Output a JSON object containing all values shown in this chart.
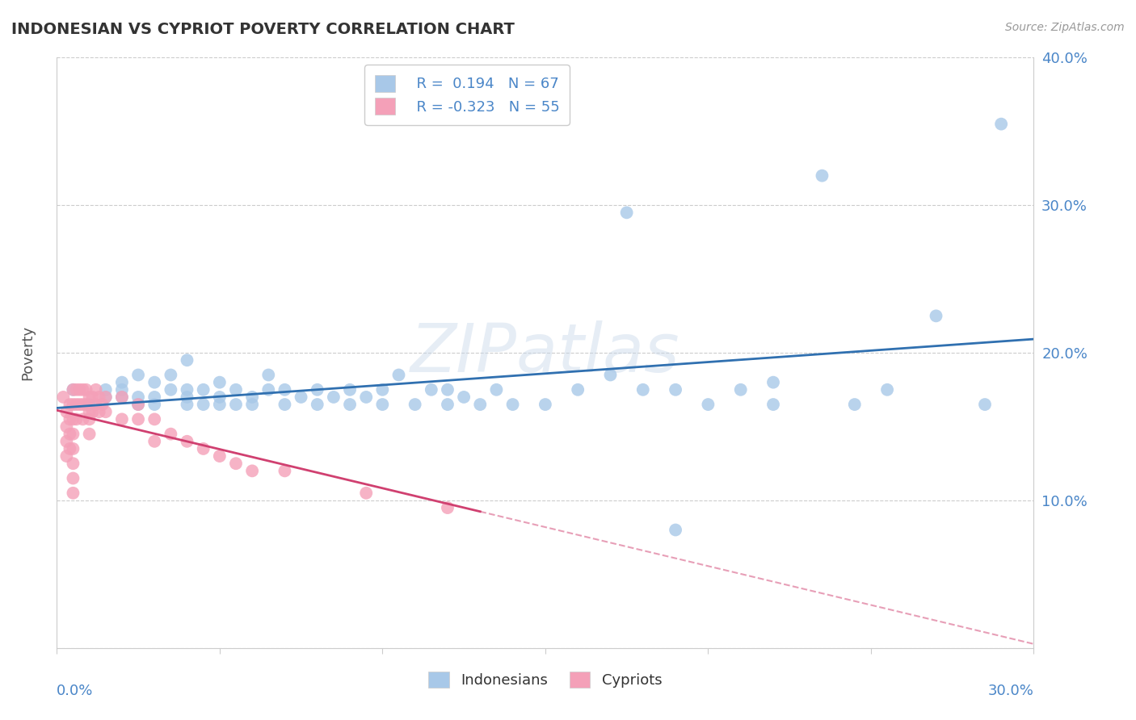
{
  "title": "INDONESIAN VS CYPRIOT POVERTY CORRELATION CHART",
  "source": "Source: ZipAtlas.com",
  "ylabel": "Poverty",
  "xlim": [
    0,
    0.3
  ],
  "ylim": [
    0,
    0.4
  ],
  "yticks": [
    0.0,
    0.1,
    0.2,
    0.3,
    0.4
  ],
  "ytick_labels": [
    "",
    "10.0%",
    "20.0%",
    "30.0%",
    "40.0%"
  ],
  "xticks": [
    0.0,
    0.05,
    0.1,
    0.15,
    0.2,
    0.25,
    0.3
  ],
  "blue_color": "#a8c8e8",
  "pink_color": "#f4a0b8",
  "blue_line_color": "#3070b0",
  "pink_line_color": "#d04070",
  "indonesian_x": [
    0.005,
    0.01,
    0.015,
    0.015,
    0.02,
    0.02,
    0.02,
    0.025,
    0.025,
    0.025,
    0.03,
    0.03,
    0.03,
    0.035,
    0.035,
    0.04,
    0.04,
    0.04,
    0.04,
    0.045,
    0.045,
    0.05,
    0.05,
    0.05,
    0.055,
    0.055,
    0.06,
    0.06,
    0.065,
    0.065,
    0.07,
    0.07,
    0.075,
    0.08,
    0.08,
    0.085,
    0.09,
    0.09,
    0.095,
    0.1,
    0.1,
    0.105,
    0.11,
    0.115,
    0.12,
    0.12,
    0.125,
    0.13,
    0.135,
    0.14,
    0.15,
    0.16,
    0.17,
    0.18,
    0.19,
    0.2,
    0.21,
    0.22,
    0.235,
    0.245,
    0.255,
    0.27,
    0.285,
    0.19,
    0.175,
    0.22,
    0.29
  ],
  "indonesian_y": [
    0.175,
    0.165,
    0.17,
    0.175,
    0.17,
    0.175,
    0.18,
    0.165,
    0.17,
    0.185,
    0.165,
    0.17,
    0.18,
    0.175,
    0.185,
    0.165,
    0.17,
    0.175,
    0.195,
    0.165,
    0.175,
    0.165,
    0.17,
    0.18,
    0.165,
    0.175,
    0.165,
    0.17,
    0.175,
    0.185,
    0.165,
    0.175,
    0.17,
    0.165,
    0.175,
    0.17,
    0.165,
    0.175,
    0.17,
    0.165,
    0.175,
    0.185,
    0.165,
    0.175,
    0.165,
    0.175,
    0.17,
    0.165,
    0.175,
    0.165,
    0.165,
    0.175,
    0.185,
    0.175,
    0.175,
    0.165,
    0.175,
    0.165,
    0.32,
    0.165,
    0.175,
    0.225,
    0.165,
    0.08,
    0.295,
    0.18,
    0.355
  ],
  "cypriot_x": [
    0.002,
    0.003,
    0.003,
    0.003,
    0.003,
    0.004,
    0.004,
    0.004,
    0.004,
    0.005,
    0.005,
    0.005,
    0.005,
    0.005,
    0.005,
    0.005,
    0.005,
    0.006,
    0.006,
    0.006,
    0.007,
    0.007,
    0.008,
    0.008,
    0.008,
    0.009,
    0.009,
    0.01,
    0.01,
    0.01,
    0.01,
    0.011,
    0.011,
    0.012,
    0.012,
    0.013,
    0.013,
    0.014,
    0.015,
    0.015,
    0.02,
    0.02,
    0.025,
    0.025,
    0.03,
    0.03,
    0.035,
    0.04,
    0.045,
    0.05,
    0.055,
    0.06,
    0.07,
    0.095,
    0.12
  ],
  "cypriot_y": [
    0.17,
    0.16,
    0.15,
    0.14,
    0.13,
    0.165,
    0.155,
    0.145,
    0.135,
    0.175,
    0.165,
    0.155,
    0.145,
    0.135,
    0.125,
    0.115,
    0.105,
    0.175,
    0.165,
    0.155,
    0.175,
    0.165,
    0.175,
    0.165,
    0.155,
    0.175,
    0.165,
    0.17,
    0.16,
    0.155,
    0.145,
    0.17,
    0.16,
    0.175,
    0.165,
    0.17,
    0.16,
    0.165,
    0.17,
    0.16,
    0.17,
    0.155,
    0.165,
    0.155,
    0.155,
    0.14,
    0.145,
    0.14,
    0.135,
    0.13,
    0.125,
    0.12,
    0.12,
    0.105,
    0.095
  ],
  "watermark": "ZIPatlas",
  "background_color": "#ffffff",
  "grid_color": "#cccccc"
}
